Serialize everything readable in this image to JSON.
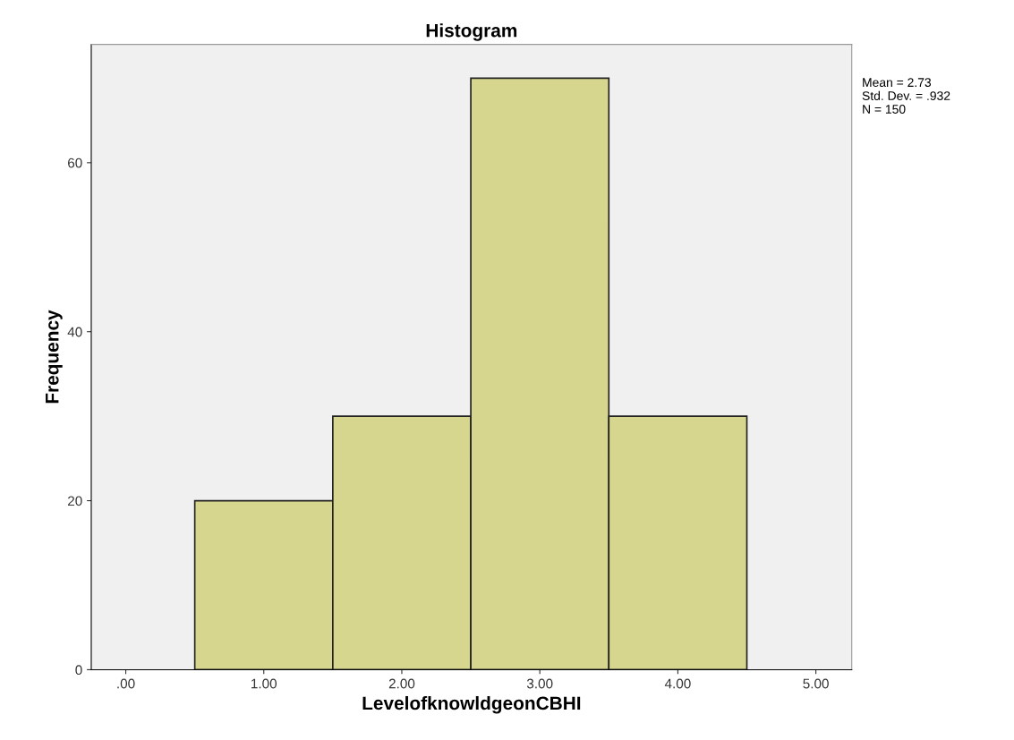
{
  "chart_data": {
    "type": "histogram",
    "title": "Histogram",
    "xlabel": "LevelofknowldgeonCBHI",
    "ylabel": "Frequency",
    "bins": [
      0.5,
      1.5,
      2.5,
      3.5,
      4.5
    ],
    "values": [
      20,
      30,
      70,
      30
    ],
    "color": "#d6d68e",
    "xlim": [
      -0.25,
      5.26
    ],
    "xticks": [
      {
        "value": 0,
        "label": ".00"
      },
      {
        "value": 1,
        "label": "1.00"
      },
      {
        "value": 2,
        "label": "2.00"
      },
      {
        "value": 3,
        "label": "3.00"
      },
      {
        "value": 4,
        "label": "4.00"
      },
      {
        "value": 5,
        "label": "5.00"
      }
    ],
    "ylim": [
      0,
      74
    ],
    "yticks": [
      0,
      20,
      40,
      60
    ],
    "grid": false,
    "legend": false,
    "annotations": [
      "Mean = 2.73\nStd. Dev. = .932\nN = 150"
    ]
  }
}
